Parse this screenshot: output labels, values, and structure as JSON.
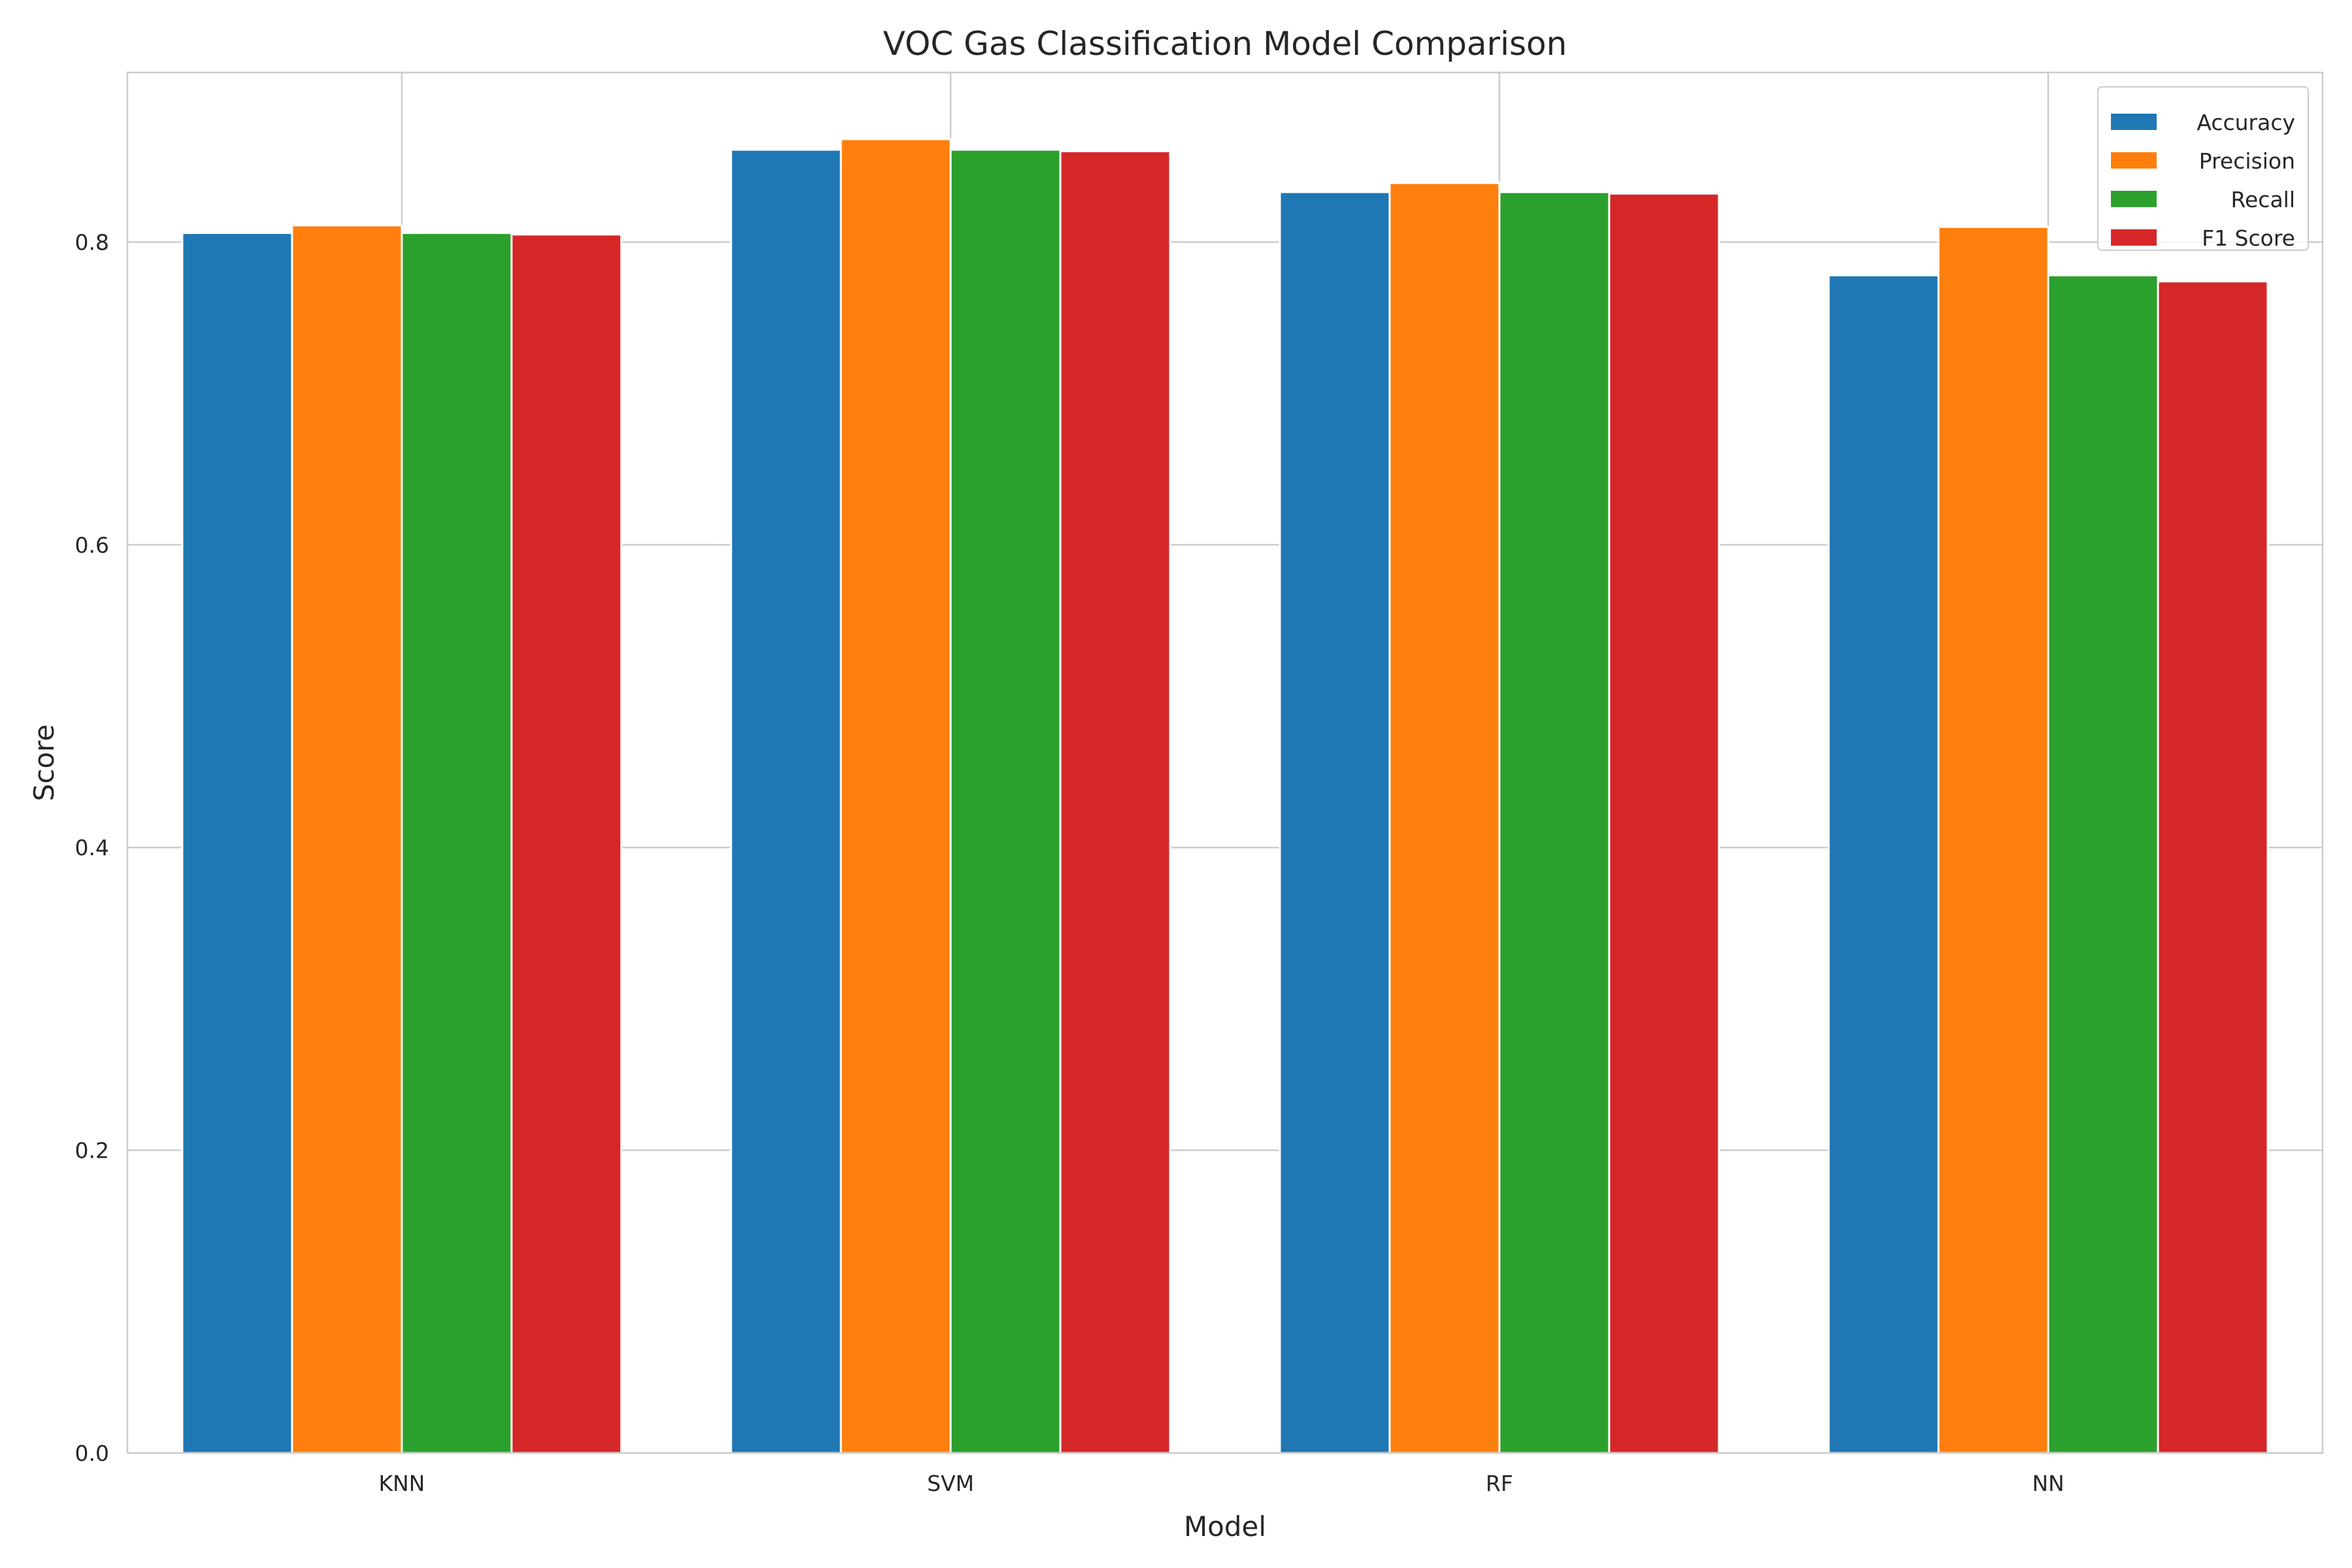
{
  "chart_data": {
    "type": "bar",
    "title": "VOC Gas Classification Model Comparison",
    "xlabel": "Model",
    "ylabel": "Score",
    "categories": [
      "KNN",
      "SVM",
      "RF",
      "NN"
    ],
    "ylim": [
      0,
      0.912
    ],
    "yticks": [
      0.0,
      0.2,
      0.4,
      0.6,
      0.8
    ],
    "ytick_labels": [
      "0.0",
      "0.2",
      "0.4",
      "0.6",
      "0.8"
    ],
    "grid": true,
    "legend_position": "top-right",
    "series": [
      {
        "name": "Accuracy",
        "color": "#1f77b4",
        "values": [
          0.806,
          0.861,
          0.833,
          0.778
        ]
      },
      {
        "name": "Precision",
        "color": "#ff7f0e",
        "values": [
          0.811,
          0.868,
          0.839,
          0.81
        ]
      },
      {
        "name": "Recall",
        "color": "#2ca02c",
        "values": [
          0.806,
          0.861,
          0.833,
          0.778
        ]
      },
      {
        "name": "F1 Score",
        "color": "#d62728",
        "values": [
          0.805,
          0.86,
          0.832,
          0.774
        ]
      }
    ]
  }
}
